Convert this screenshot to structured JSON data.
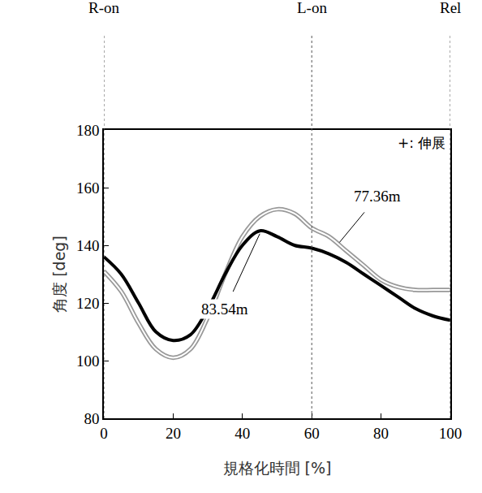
{
  "chart_data": {
    "type": "line",
    "x_label": "規格化時間 [%]",
    "y_label": "角度 [deg]",
    "x": [
      0,
      5,
      10,
      15,
      20,
      25,
      30,
      35,
      40,
      45,
      50,
      55,
      60,
      65,
      70,
      75,
      80,
      85,
      90,
      95,
      100
    ],
    "series": [
      {
        "name": "83.54m",
        "color": "#000000",
        "line_style": "solid",
        "values": [
          136,
          130,
          120,
          110,
          107,
          109,
          118,
          130,
          140,
          145,
          143,
          140,
          139,
          137,
          134,
          130,
          126,
          122,
          118,
          115.5,
          114
        ]
      },
      {
        "name": "77.36m",
        "color": "#999999",
        "line_style": "double",
        "values": [
          131,
          124,
          113,
          104,
          101,
          104,
          115,
          130,
          143,
          150,
          152.5,
          151,
          146,
          143,
          138,
          133,
          128,
          125.5,
          124.5,
          124.5,
          124.5
        ]
      }
    ],
    "xlim": [
      0,
      100
    ],
    "xticks": [
      0,
      20,
      40,
      60,
      80,
      100
    ],
    "ylim": [
      80,
      180
    ],
    "yticks": [
      80,
      100,
      120,
      140,
      160,
      180
    ],
    "grid": false,
    "events": [
      {
        "x": 0,
        "label": "R-on"
      },
      {
        "x": 60,
        "label": "L-on"
      },
      {
        "x": 100,
        "label": "Rel"
      }
    ],
    "annotations": [
      {
        "text": "83.54m",
        "x": 45,
        "y": 144,
        "label_x": 35,
        "label_y": 118
      },
      {
        "text": "77.36m",
        "x": 68,
        "y": 141,
        "label_x": 79,
        "label_y": 157
      },
      {
        "text": "+: 伸展"
      }
    ]
  }
}
